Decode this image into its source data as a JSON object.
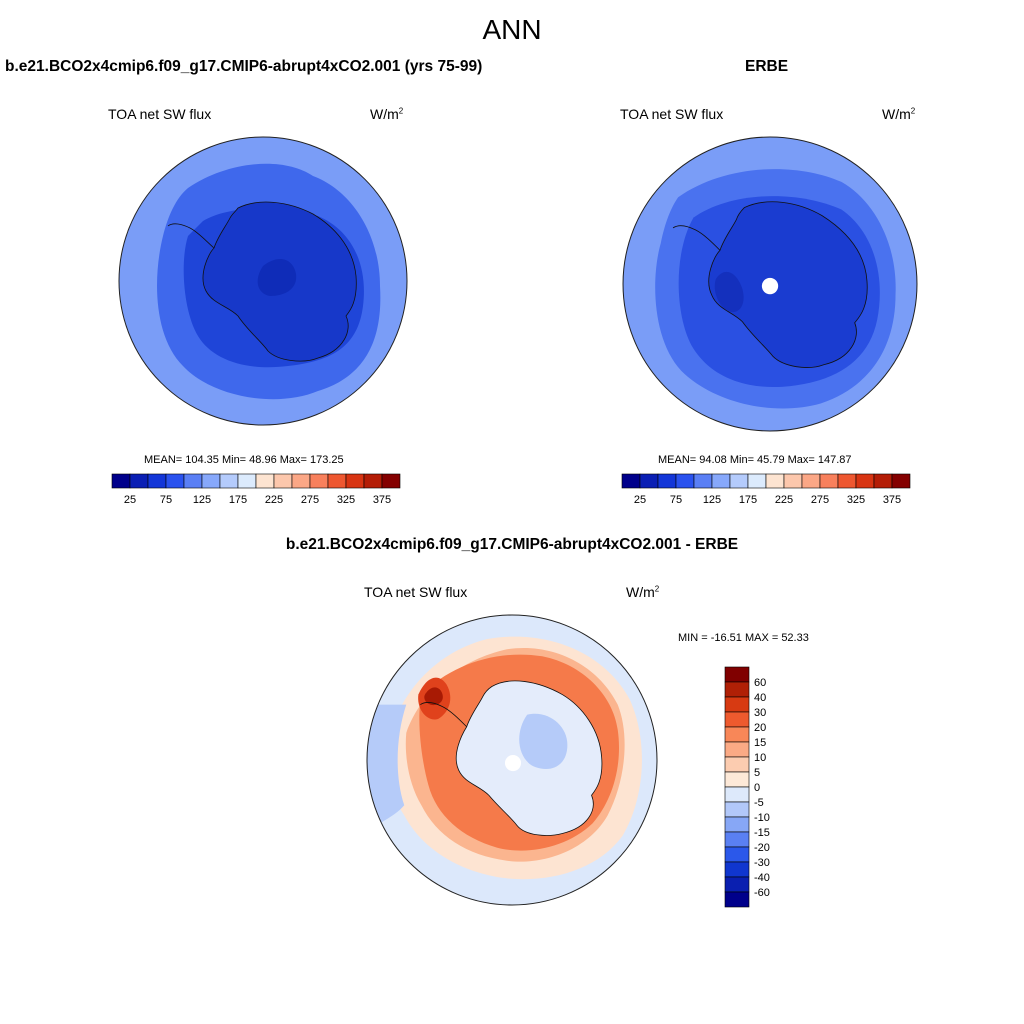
{
  "figure": {
    "title": "ANN"
  },
  "chart_data": [
    {
      "type": "heatmap",
      "projection": "south-polar-stereographic",
      "title": "b.e21.BCO2x4cmip6.f09_g17.CMIP6-abrupt4xCO2.001 (yrs 75-99)",
      "variable": "TOA net SW flux",
      "units_base": "W/m",
      "units_exp": "2",
      "stats_text": "MEAN= 104.35  Min=  48.96  Max= 173.25",
      "stats": {
        "mean": 104.35,
        "min": 48.96,
        "max": 173.25
      },
      "colorbar": {
        "orientation": "horizontal",
        "levels": [
          25,
          50,
          75,
          100,
          125,
          150,
          175,
          200,
          225,
          250,
          275,
          300,
          325,
          350,
          375
        ],
        "tick_labels": [
          "25",
          "75",
          "125",
          "175",
          "225",
          "275",
          "325",
          "375"
        ],
        "colors": [
          "#00008b",
          "#0a1fb4",
          "#1336d8",
          "#2a52ef",
          "#5a7ff5",
          "#87a8fb",
          "#b4cbfc",
          "#dcebfd",
          "#fde4d1",
          "#fcc7ac",
          "#fba786",
          "#f8805c",
          "#ee5730",
          "#d83412",
          "#b41d06",
          "#840000"
        ]
      }
    },
    {
      "type": "heatmap",
      "projection": "south-polar-stereographic",
      "title": "ERBE",
      "variable": "TOA net SW flux",
      "units_base": "W/m",
      "units_exp": "2",
      "stats_text": "MEAN=  94.08  Min=  45.79  Max= 147.87",
      "stats": {
        "mean": 94.08,
        "min": 45.79,
        "max": 147.87
      },
      "colorbar": {
        "orientation": "horizontal",
        "levels": [
          25,
          50,
          75,
          100,
          125,
          150,
          175,
          200,
          225,
          250,
          275,
          300,
          325,
          350,
          375
        ],
        "tick_labels": [
          "25",
          "75",
          "125",
          "175",
          "225",
          "275",
          "325",
          "375"
        ],
        "colors": [
          "#00008b",
          "#0a1fb4",
          "#1336d8",
          "#2a52ef",
          "#5a7ff5",
          "#87a8fb",
          "#b4cbfc",
          "#dcebfd",
          "#fde4d1",
          "#fcc7ac",
          "#fba786",
          "#f8805c",
          "#ee5730",
          "#d83412",
          "#b41d06",
          "#840000"
        ]
      }
    },
    {
      "type": "heatmap",
      "projection": "south-polar-stereographic",
      "title": "b.e21.BCO2x4cmip6.f09_g17.CMIP6-abrupt4xCO2.001 - ERBE",
      "variable": "TOA net SW flux",
      "units_base": "W/m",
      "units_exp": "2",
      "stats_text": "MIN = -16.51 MAX =  52.33",
      "stats": {
        "min": -16.51,
        "max": 52.33
      },
      "colorbar": {
        "orientation": "vertical",
        "levels": [
          60,
          40,
          30,
          20,
          15,
          10,
          5,
          0,
          -5,
          -10,
          -15,
          -20,
          -30,
          -40,
          -60
        ],
        "tick_labels": [
          "60",
          "40",
          "30",
          "20",
          "15",
          "10",
          "5",
          "0",
          "-5",
          "-10",
          "-15",
          "-20",
          "-30",
          "-40",
          "-60"
        ],
        "colors": [
          "#800000",
          "#b02006",
          "#d73a12",
          "#ee5a2e",
          "#f88758",
          "#fbaa85",
          "#fcccb0",
          "#fde9d8",
          "#dde9fb",
          "#b2c8f9",
          "#87a7f6",
          "#5a80f2",
          "#2b58ea",
          "#1036cf",
          "#0a1fb0",
          "#00008b"
        ]
      }
    }
  ]
}
